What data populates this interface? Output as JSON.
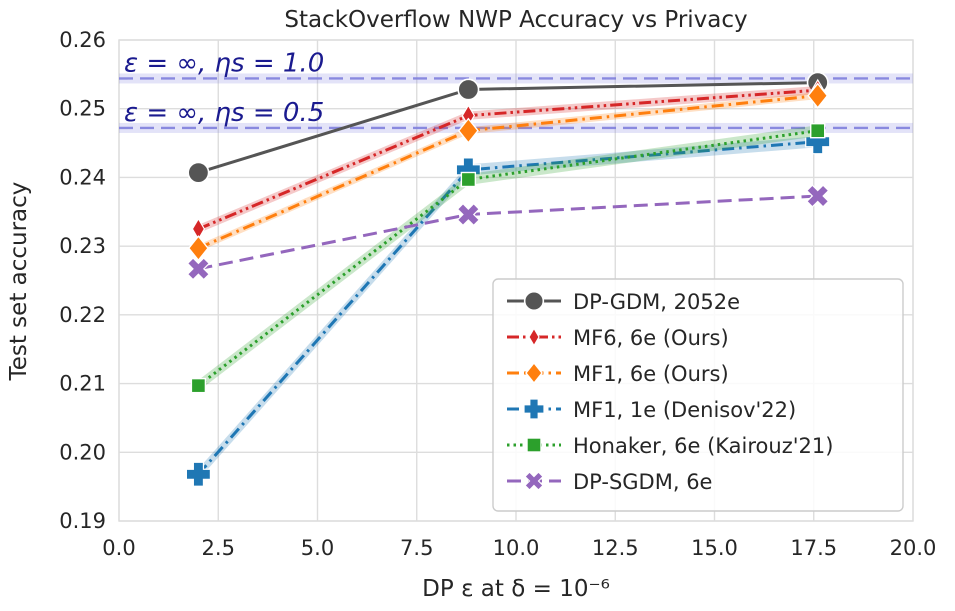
{
  "chart_data": {
    "type": "line",
    "title": "StackOverflow NWP Accuracy vs Privacy",
    "xlabel": "DP ε at δ = 10⁻⁶",
    "ylabel": "Test set accuracy",
    "xlim": [
      0,
      20
    ],
    "ylim": [
      0.19,
      0.26
    ],
    "xticks": [
      "0.0",
      "2.5",
      "5.0",
      "7.5",
      "10.0",
      "12.5",
      "15.0",
      "17.5",
      "20.0"
    ],
    "yticks": [
      "0.19",
      "0.20",
      "0.21",
      "0.22",
      "0.23",
      "0.24",
      "0.25",
      "0.26"
    ],
    "grid": true,
    "legend_position": "lower-right",
    "reference_lines": [
      {
        "label": "ε = ∞, ηs = 1.0",
        "y": 0.2544,
        "color": "#8080dd"
      },
      {
        "label": "ε = ∞, ηs = 0.5",
        "y": 0.2472,
        "color": "#8080dd"
      }
    ],
    "series": [
      {
        "name": "DP-GDM, 2052e",
        "color": "#555555",
        "marker": "circle",
        "dash": "solid",
        "x": [
          2.0,
          8.8,
          17.6
        ],
        "y": [
          0.2407,
          0.2528,
          0.2538
        ],
        "band": 0
      },
      {
        "name": "MF6, 6e (Ours)",
        "color": "#d62728",
        "marker": "diamond-thin",
        "dash": "dashdotdot",
        "x": [
          2.0,
          8.8,
          17.6
        ],
        "y": [
          0.2325,
          0.249,
          0.2527
        ],
        "band": 0.0006
      },
      {
        "name": "MF1, 6e (Ours)",
        "color": "#ff7f0e",
        "marker": "diamond",
        "dash": "dashdot",
        "x": [
          2.0,
          8.8,
          17.6
        ],
        "y": [
          0.2297,
          0.2468,
          0.2519
        ],
        "band": 0.0005
      },
      {
        "name": "MF1, 1e (Denisov'22)",
        "color": "#1f77b4",
        "marker": "plus",
        "dash": "dashdot",
        "x": [
          2.0,
          8.8,
          17.6
        ],
        "y": [
          0.1968,
          0.2411,
          0.2452
        ],
        "band": 0.0008
      },
      {
        "name": "Honaker, 6e (Kairouz'21)",
        "color": "#2ca02c",
        "marker": "square",
        "dash": "dotted",
        "x": [
          2.0,
          8.8,
          17.6
        ],
        "y": [
          0.2097,
          0.2397,
          0.2468
        ],
        "band": 0.0008
      },
      {
        "name": "DP-SGDM, 6e",
        "color": "#9467bd",
        "marker": "x",
        "dash": "dashed",
        "x": [
          2.0,
          8.8,
          17.6
        ],
        "y": [
          0.2267,
          0.2346,
          0.2373
        ],
        "band": 0
      }
    ]
  }
}
